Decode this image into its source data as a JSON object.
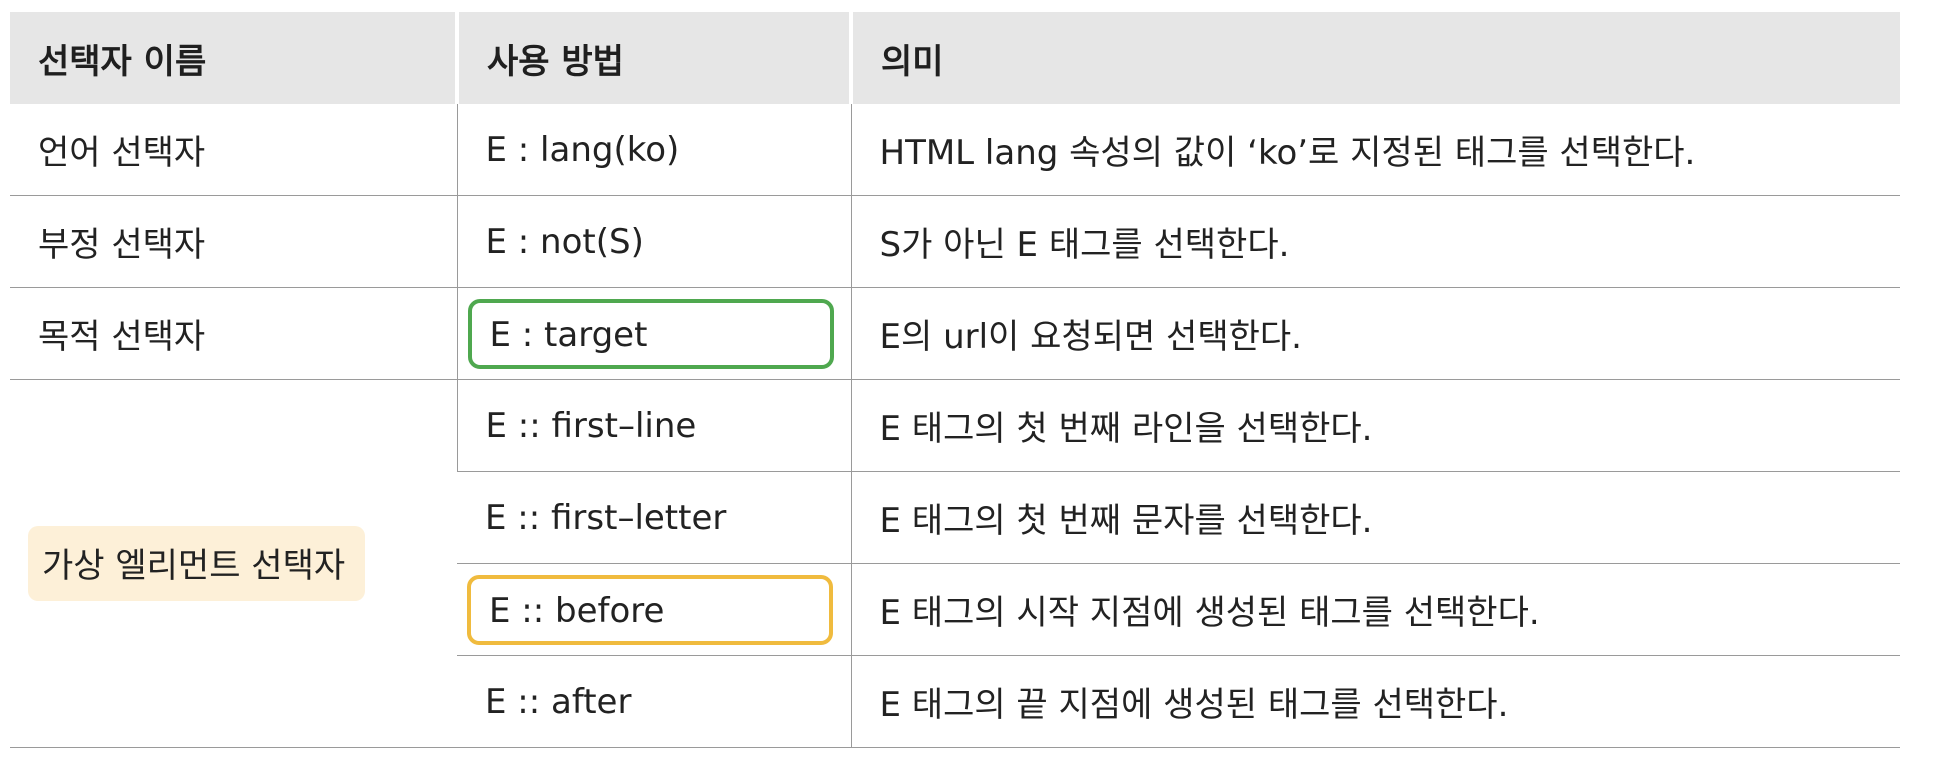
{
  "table": {
    "headers": [
      "선택자 이름",
      "사용 방법",
      "의미"
    ],
    "rows": [
      {
        "name": "언어 선택자",
        "usage": "E : lang(ko)",
        "meaning": "HTML lang 속성의 값이 ‘ko’로 지정된 태그를 선택한다."
      },
      {
        "name": "부정 선택자",
        "usage": "E : not(S)",
        "meaning": "S가 아닌 E 태그를 선택한다."
      },
      {
        "name": "목적 선택자",
        "usage": "E : target",
        "meaning": "E의 url이 요청되면 선택한다."
      },
      {
        "name": "가상 엘리먼트 선택자",
        "usage": "E :: first–line",
        "meaning": "E 태그의 첫 번째 라인을 선택한다."
      },
      {
        "usage": "E :: first–letter",
        "meaning": "E 태그의 첫 번째 문자를 선택한다."
      },
      {
        "usage": "E :: before",
        "meaning": "E 태그의 시작 지점에 생성된 태그를 선택한다."
      },
      {
        "usage": "E :: after",
        "meaning": "E 태그의 끝 지점에 생성된 태그를 선택한다."
      }
    ]
  },
  "highlights": {
    "target_box_color": "#4fa84f",
    "before_box_color": "#f0bb3e",
    "pseudo_category_bg": "#fdf0d8"
  }
}
